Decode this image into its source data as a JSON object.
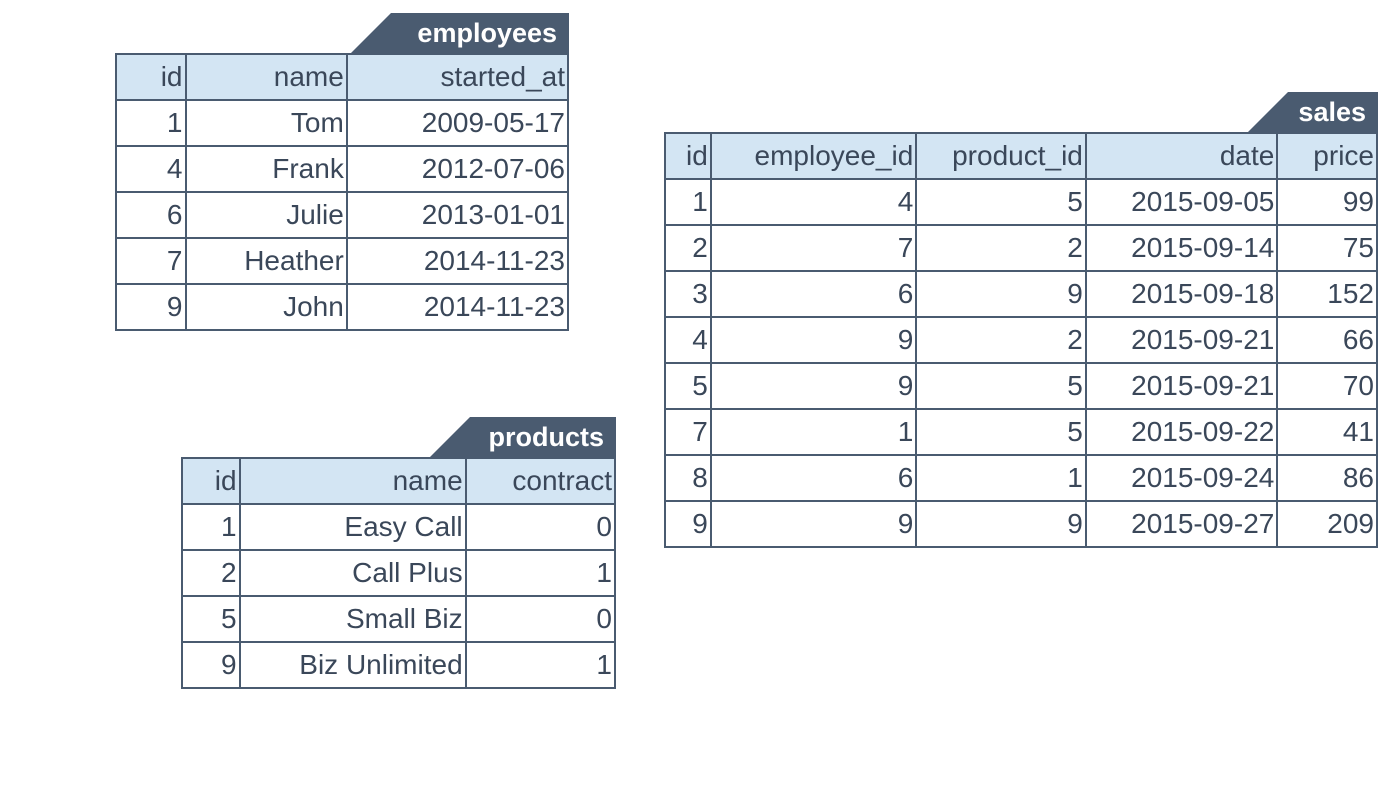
{
  "tables": [
    {
      "title": "employees",
      "columns": [
        "id",
        "name",
        "started_at"
      ],
      "rows": [
        [
          "1",
          "Tom",
          "2009-05-17"
        ],
        [
          "4",
          "Frank",
          "2012-07-06"
        ],
        [
          "6",
          "Julie",
          "2013-01-01"
        ],
        [
          "7",
          "Heather",
          "2014-11-23"
        ],
        [
          "9",
          "John",
          "2014-11-23"
        ]
      ]
    },
    {
      "title": "products",
      "columns": [
        "id",
        "name",
        "contract"
      ],
      "rows": [
        [
          "1",
          "Easy Call",
          "0"
        ],
        [
          "2",
          "Call Plus",
          "1"
        ],
        [
          "5",
          "Small Biz",
          "0"
        ],
        [
          "9",
          "Biz Unlimited",
          "1"
        ]
      ]
    },
    {
      "title": "sales",
      "columns": [
        "id",
        "employee_id",
        "product_id",
        "date",
        "price"
      ],
      "rows": [
        [
          "1",
          "4",
          "5",
          "2015-09-05",
          "99"
        ],
        [
          "2",
          "7",
          "2",
          "2015-09-14",
          "75"
        ],
        [
          "3",
          "6",
          "9",
          "2015-09-18",
          "152"
        ],
        [
          "4",
          "9",
          "2",
          "2015-09-21",
          "66"
        ],
        [
          "5",
          "9",
          "5",
          "2015-09-21",
          "70"
        ],
        [
          "7",
          "1",
          "5",
          "2015-09-22",
          "41"
        ],
        [
          "8",
          "6",
          "1",
          "2015-09-24",
          "86"
        ],
        [
          "9",
          "9",
          "9",
          "2015-09-27",
          "209"
        ]
      ]
    }
  ]
}
